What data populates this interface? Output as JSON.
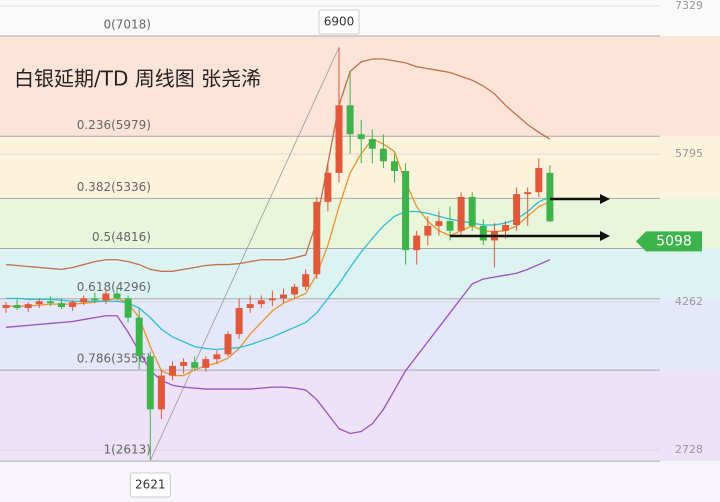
{
  "chart_data": {
    "type": "candlestick",
    "title": "白银延期/TD 周线图 张尧浠",
    "ylim": [
      2190,
      7391
    ],
    "yticks": [
      7329,
      5795,
      4262,
      2728
    ],
    "fib_levels": [
      {
        "value": 7018,
        "label": "0(7018)"
      },
      {
        "value": 5979,
        "label": "0.236(5979)"
      },
      {
        "value": 5336,
        "label": "0.382(5336)"
      },
      {
        "value": 4816,
        "label": "0.5(4816)"
      },
      {
        "value": 4296,
        "label": "0.618(4296)"
      },
      {
        "value": 3556,
        "label": "0.786(3556)"
      },
      {
        "value": 2613,
        "label": "1(2613)"
      }
    ],
    "up_color": "#e2583b",
    "down_color": "#3cb44b",
    "categories": [
      null,
      null,
      null,
      null,
      null,
      null,
      null,
      null,
      null,
      null,
      null,
      null,
      null,
      null,
      null,
      null,
      null,
      null,
      null,
      null,
      null,
      null,
      null,
      null,
      null,
      null,
      null,
      null,
      null,
      null,
      null,
      null,
      null,
      null,
      null,
      null,
      null,
      null,
      null,
      null,
      null,
      null,
      null,
      null,
      null,
      null,
      null,
      null,
      null,
      null
    ],
    "open": [
      4200,
      4230,
      4200,
      4240,
      4270,
      4250,
      4210,
      4260,
      4300,
      4280,
      4350,
      4300,
      4100,
      3700,
      3150,
      3500,
      3600,
      3640,
      3580,
      3670,
      3720,
      3930,
      4200,
      4240,
      4280,
      4300,
      4340,
      4420,
      4550,
      5300,
      5600,
      6300,
      6000,
      5950,
      5850,
      5720,
      5620,
      4800,
      4950,
      5050,
      5100,
      5000,
      5350,
      5050,
      4900,
      5000,
      5060,
      5380,
      5400,
      5600
    ],
    "high": [
      4260,
      4290,
      4260,
      4300,
      4320,
      4300,
      4280,
      4330,
      4360,
      4400,
      4420,
      4330,
      4200,
      3750,
      3560,
      3650,
      3680,
      3700,
      3700,
      3760,
      3960,
      4300,
      4330,
      4330,
      4380,
      4400,
      4450,
      4600,
      5350,
      5700,
      6900,
      6650,
      6150,
      6050,
      6000,
      5800,
      5700,
      5000,
      5150,
      5200,
      5250,
      5400,
      5400,
      5120,
      5080,
      5100,
      5450,
      5450,
      5750,
      5680
    ],
    "low": [
      4150,
      4180,
      4160,
      4200,
      4220,
      4190,
      4170,
      4230,
      4250,
      4240,
      4280,
      4050,
      3560,
      2621,
      3050,
      3450,
      3520,
      3550,
      3540,
      3620,
      3700,
      3880,
      4150,
      4200,
      4220,
      4250,
      4300,
      4380,
      4500,
      5200,
      5500,
      5800,
      5700,
      5700,
      5650,
      5500,
      4650,
      4650,
      4850,
      4950,
      4900,
      4950,
      5000,
      4850,
      4620,
      4920,
      5000,
      5050,
      5350,
      5090
    ],
    "close": [
      4230,
      4200,
      4240,
      4270,
      4250,
      4210,
      4260,
      4300,
      4280,
      4350,
      4300,
      4100,
      3700,
      3150,
      3500,
      3600,
      3640,
      3580,
      3670,
      3720,
      3930,
      4200,
      4240,
      4280,
      4300,
      4340,
      4420,
      4550,
      5300,
      5600,
      6300,
      6000,
      5950,
      5850,
      5720,
      5620,
      4800,
      4950,
      5050,
      5100,
      5000,
      5350,
      5050,
      4900,
      5000,
      5060,
      5380,
      5400,
      5650,
      5098
    ],
    "lines": [
      {
        "color": "#c0704a",
        "values": [
          4650,
          4640,
          4630,
          4620,
          4610,
          4600,
          4620,
          4650,
          4680,
          4700,
          4700,
          4680,
          4650,
          4600,
          4580,
          4580,
          4600,
          4620,
          4640,
          4650,
          4650,
          4660,
          4680,
          4700,
          4700,
          4700,
          4720,
          4750,
          5100,
          5700,
          6300,
          6650,
          6750,
          6780,
          6780,
          6760,
          6740,
          6700,
          6680,
          6660,
          6640,
          6600,
          6560,
          6500,
          6420,
          6300,
          6200,
          6100,
          6020,
          5950
        ]
      },
      {
        "color": "#9b4fc4",
        "values": [
          4000,
          4010,
          4020,
          4030,
          4040,
          4050,
          4060,
          4080,
          4100,
          4120,
          4120,
          3950,
          3750,
          3550,
          3450,
          3400,
          3380,
          3370,
          3360,
          3360,
          3360,
          3360,
          3360,
          3370,
          3380,
          3380,
          3370,
          3350,
          3250,
          3100,
          2950,
          2900,
          2920,
          3000,
          3150,
          3350,
          3550,
          3700,
          3850,
          4000,
          4150,
          4300,
          4450,
          4500,
          4520,
          4540,
          4560,
          4600,
          4650,
          4700
        ]
      },
      {
        "color": "#f0922c",
        "values": [
          4220,
          4220,
          4220,
          4230,
          4240,
          4240,
          4240,
          4250,
          4260,
          4280,
          4300,
          4250,
          4100,
          3800,
          3550,
          3500,
          3500,
          3560,
          3600,
          3630,
          3680,
          3780,
          3930,
          4050,
          4170,
          4250,
          4300,
          4350,
          4550,
          4850,
          5250,
          5600,
          5800,
          5950,
          5900,
          5820,
          5500,
          5250,
          5100,
          5000,
          4950,
          5000,
          5050,
          5000,
          4990,
          5000,
          5050,
          5150,
          5250,
          5300
        ]
      },
      {
        "color": "#2bbfd8",
        "values": [
          4300,
          4300,
          4290,
          4290,
          4290,
          4280,
          4270,
          4270,
          4270,
          4270,
          4270,
          4250,
          4200,
          4100,
          3980,
          3900,
          3850,
          3800,
          3780,
          3770,
          3780,
          3790,
          3820,
          3860,
          3900,
          3950,
          4000,
          4050,
          4150,
          4300,
          4450,
          4620,
          4780,
          4920,
          5050,
          5150,
          5200,
          5200,
          5180,
          5150,
          5120,
          5100,
          5080,
          5060,
          5060,
          5080,
          5120,
          5200,
          5300,
          5350
        ]
      }
    ],
    "high_label": 6900,
    "low_label": 2621,
    "last_price": 5098
  }
}
